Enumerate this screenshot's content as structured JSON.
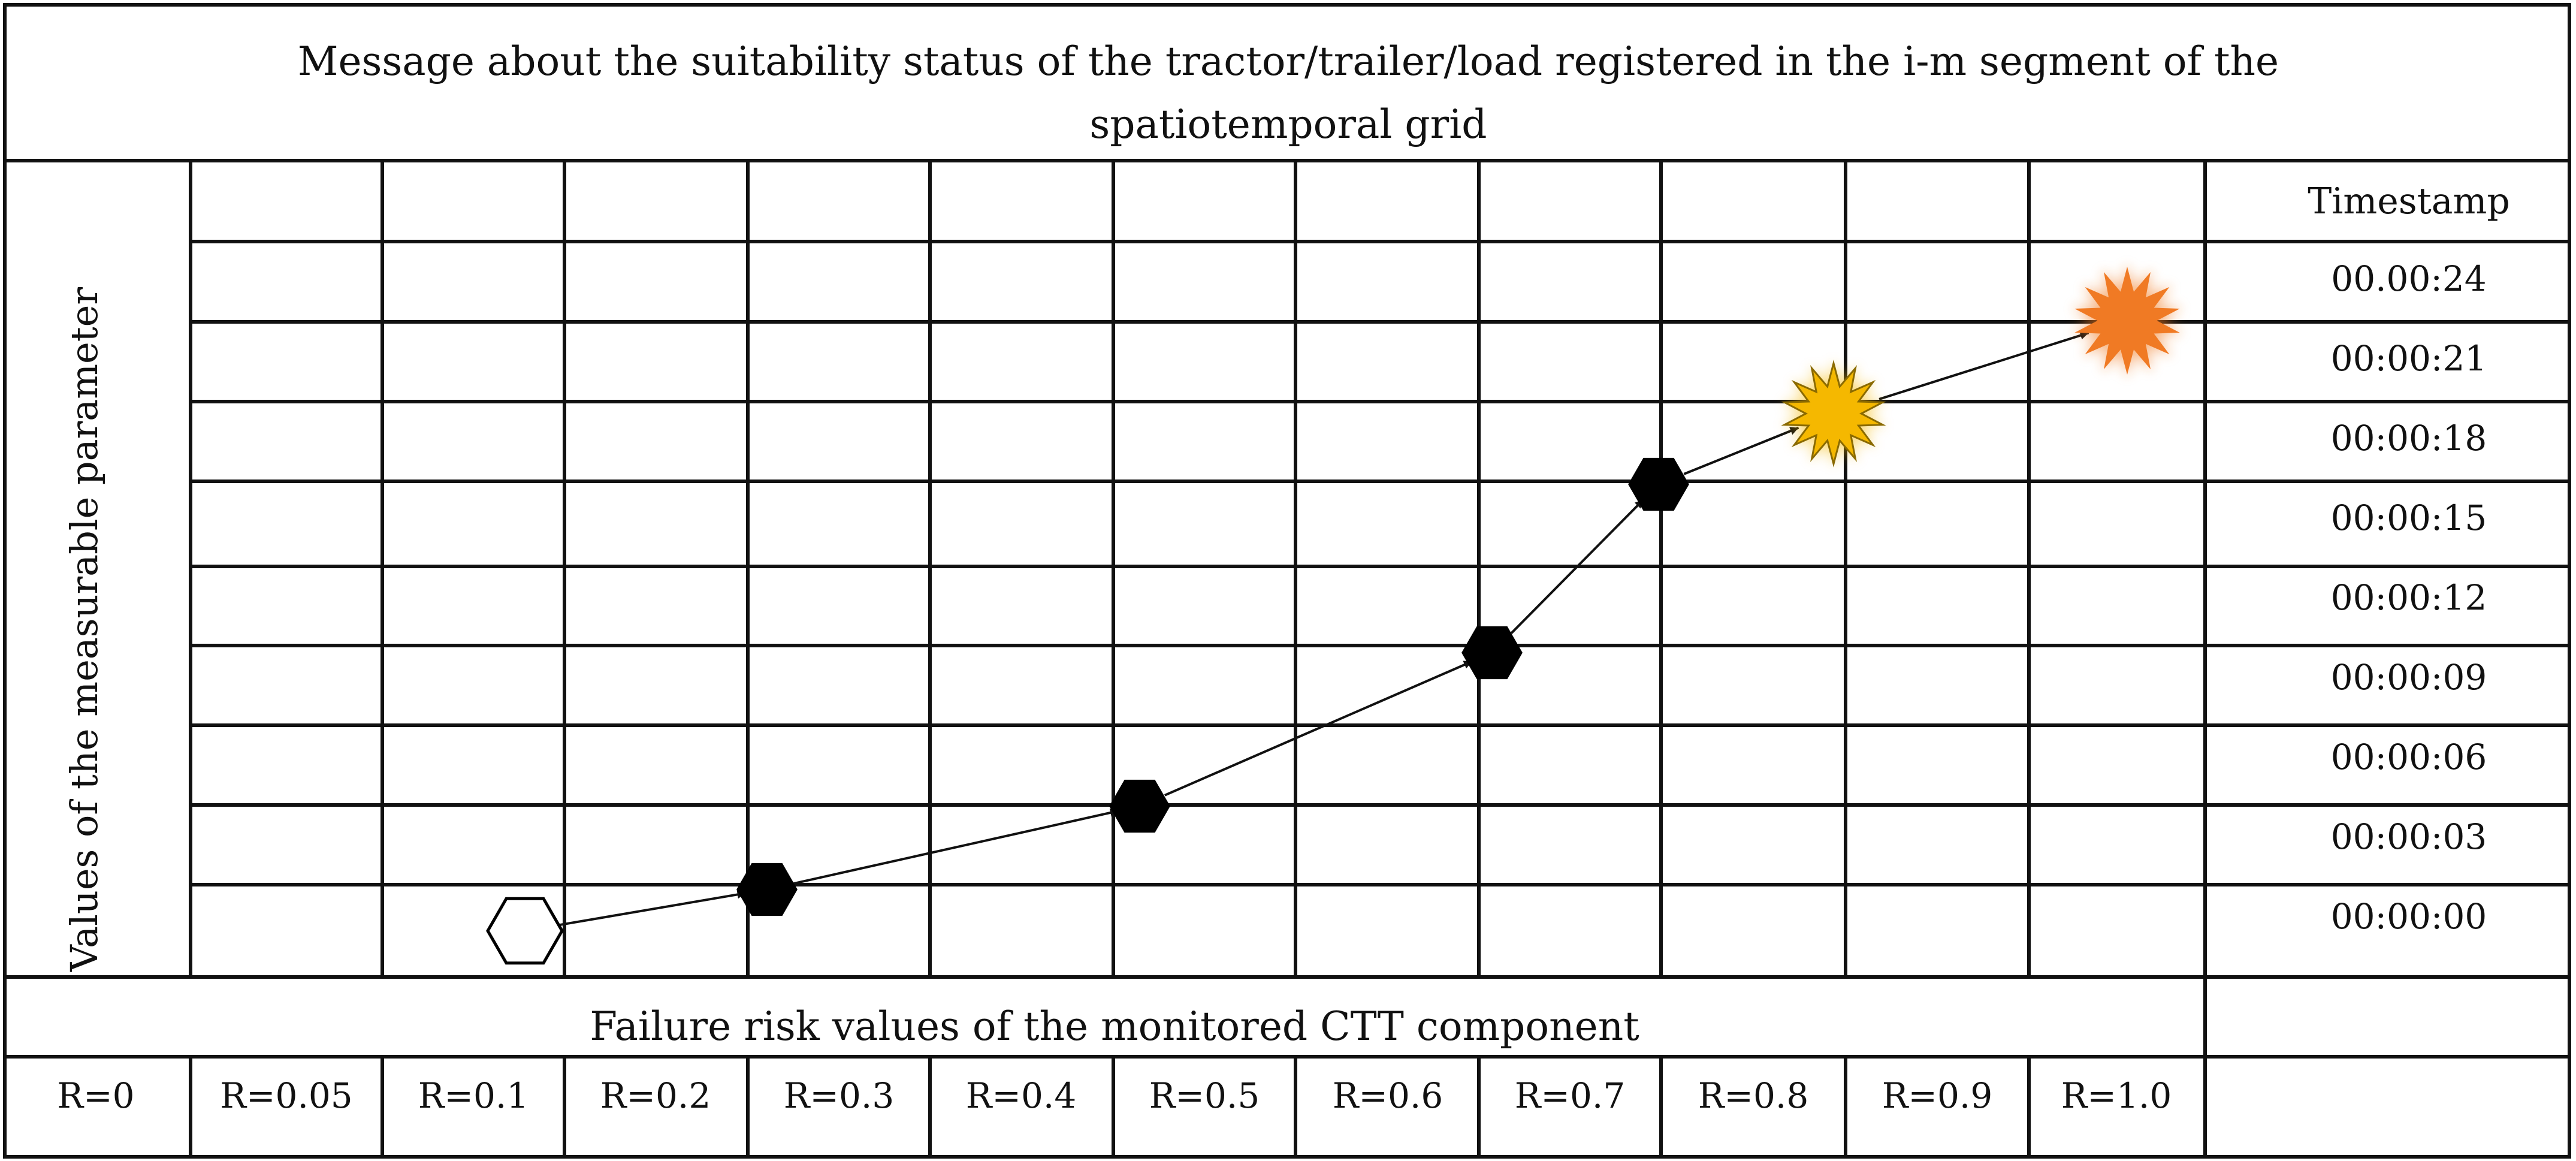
{
  "title": {
    "line1": "Message about the suitability status of the tractor/trailer/load registered in the i-m segment of the",
    "line2": "spatiotemporal grid"
  },
  "y_axis_label": "Values of the measurable parameter",
  "x_axis_label": "Failure risk values of the monitored CTT component",
  "timestamp_header": "Timestamp",
  "timestamps": [
    "00.00:24",
    "00:00:21",
    "00:00:18",
    "00:00:15",
    "00:00:12",
    "00:00:09",
    "00:00:06",
    "00:00:03",
    "00:00:00"
  ],
  "risk_values": [
    "R=0",
    "R=0.05",
    "R=0.1",
    "R=0.2",
    "R=0.3",
    "R=0.4",
    "R=0.5",
    "R=0.6",
    "R=0.7",
    "R=0.8",
    "R=0.9",
    "R=1.0"
  ],
  "colors": {
    "grid": "#111111",
    "marker_initial": "#ffffff",
    "marker_normal": "#000000",
    "marker_warning": "#f5b800",
    "marker_critical": "#f07a24"
  },
  "trajectory": [
    {
      "shape": "hexagon-outline-icon",
      "state": "initial"
    },
    {
      "shape": "hexagon-filled-icon",
      "state": "normal"
    },
    {
      "shape": "hexagon-filled-icon",
      "state": "normal"
    },
    {
      "shape": "hexagon-filled-icon",
      "state": "normal"
    },
    {
      "shape": "hexagon-filled-icon",
      "state": "normal"
    },
    {
      "shape": "burst-star-icon",
      "state": "warning"
    },
    {
      "shape": "burst-star-icon",
      "state": "critical"
    }
  ]
}
